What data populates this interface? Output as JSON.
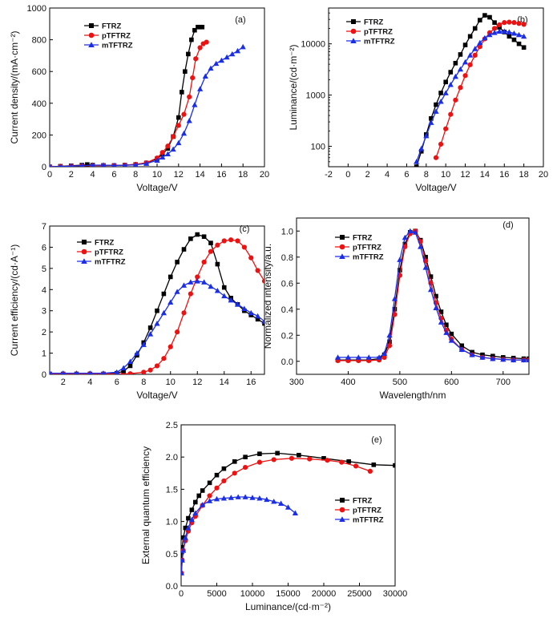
{
  "colors": {
    "FTRZ": "#000000",
    "pTFTRZ": "#ee1111",
    "mTFTRZ": "#1a2ee8"
  },
  "chart_data": [
    {
      "panel": "(a)",
      "type": "line",
      "scale": "linear",
      "xlabel": "Voltage/V",
      "ylabel": "Current density/(mA·cm⁻²)",
      "xlim": [
        0,
        20
      ],
      "ylim": [
        0,
        1000
      ],
      "xticks": [
        0,
        2,
        4,
        6,
        8,
        10,
        12,
        14,
        16,
        18,
        20
      ],
      "yticks": [
        0,
        200,
        400,
        600,
        800,
        1000
      ],
      "legend": "top-left",
      "series": [
        {
          "name": "FTRZ",
          "marker": "square",
          "x": [
            0,
            1,
            2,
            3,
            3.5,
            4,
            5,
            6,
            7,
            8,
            9,
            10,
            10.5,
            11,
            11.5,
            12,
            12.3,
            12.6,
            12.9,
            13.2,
            13.5,
            13.8,
            14,
            14.2
          ],
          "y": [
            0,
            3,
            6,
            10,
            14,
            10,
            8,
            8,
            10,
            14,
            24,
            50,
            78,
            115,
            190,
            310,
            470,
            600,
            710,
            800,
            860,
            880,
            880,
            880
          ]
        },
        {
          "name": "pTFTRZ",
          "marker": "circle",
          "x": [
            0,
            1,
            2,
            3,
            4,
            5,
            6,
            7,
            8,
            9,
            10,
            10.5,
            11,
            11.5,
            12,
            12.5,
            13,
            13.3,
            13.6,
            14,
            14.3,
            14.6
          ],
          "y": [
            0,
            2,
            4,
            6,
            7,
            7,
            8,
            10,
            15,
            25,
            55,
            90,
            130,
            190,
            260,
            330,
            440,
            560,
            680,
            750,
            775,
            785
          ]
        },
        {
          "name": "mTFTRZ",
          "marker": "triangle",
          "x": [
            0,
            1,
            2,
            3,
            4,
            5,
            6,
            7,
            8,
            9,
            10,
            10.5,
            11,
            11.5,
            12,
            12.5,
            13,
            13.5,
            14,
            14.5,
            15,
            15.5,
            16,
            16.5,
            17,
            17.5,
            18
          ],
          "y": [
            0,
            2,
            4,
            7,
            10,
            10,
            8,
            9,
            12,
            20,
            40,
            60,
            80,
            110,
            150,
            210,
            290,
            390,
            490,
            570,
            620,
            650,
            670,
            690,
            710,
            730,
            755
          ]
        }
      ]
    },
    {
      "panel": "(b)",
      "type": "line",
      "scale": "log-y",
      "xlabel": "Voltage/V",
      "ylabel": "Luminance/(cd·m⁻²)",
      "xlim": [
        -2,
        20
      ],
      "ylim": [
        40,
        50000
      ],
      "xticks": [
        -2,
        0,
        2,
        4,
        6,
        8,
        10,
        12,
        14,
        16,
        18,
        20
      ],
      "yticks": [
        100,
        1000,
        10000
      ],
      "legend": "top-left",
      "series": [
        {
          "name": "FTRZ",
          "marker": "square",
          "x": [
            7,
            7.5,
            8,
            8.5,
            9,
            9.5,
            10,
            10.5,
            11,
            11.5,
            12,
            12.5,
            13,
            13.5,
            14,
            14.5,
            15,
            15.5,
            16,
            16.5,
            17,
            17.5,
            18
          ],
          "y": [
            40,
            80,
            170,
            350,
            650,
            1100,
            1800,
            2800,
            4200,
            6200,
            9500,
            14000,
            20000,
            29000,
            36000,
            33000,
            26000,
            21000,
            17000,
            14000,
            12000,
            10000,
            8500
          ]
        },
        {
          "name": "pTFTRZ",
          "marker": "circle",
          "x": [
            9,
            9.5,
            10,
            10.5,
            11,
            11.5,
            12,
            12.5,
            13,
            13.5,
            14,
            14.5,
            15,
            15.5,
            16,
            16.5,
            17,
            17.5,
            18
          ],
          "y": [
            60,
            110,
            220,
            420,
            800,
            1400,
            2400,
            3900,
            6000,
            8800,
            12500,
            16500,
            20000,
            23500,
            26000,
            26500,
            26000,
            25000,
            24000
          ]
        },
        {
          "name": "mTFTRZ",
          "marker": "triangle",
          "x": [
            7,
            7.5,
            8,
            8.5,
            9,
            9.5,
            10,
            10.5,
            11,
            11.5,
            12,
            12.5,
            13,
            13.5,
            14,
            14.5,
            15,
            15.5,
            16,
            16.5,
            17,
            17.5,
            18
          ],
          "y": [
            50,
            90,
            160,
            290,
            480,
            750,
            1100,
            1600,
            2300,
            3200,
            4400,
            6000,
            8000,
            10500,
            13000,
            15000,
            16500,
            17500,
            17500,
            17000,
            16000,
            15000,
            14000
          ]
        }
      ]
    },
    {
      "panel": "(c)",
      "type": "line",
      "scale": "linear",
      "xlabel": "Voltage/V",
      "ylabel": "Current efficiency/(cd·A⁻¹)",
      "xlim": [
        1,
        17
      ],
      "ylim": [
        0,
        7
      ],
      "xticks": [
        2,
        4,
        6,
        8,
        10,
        12,
        14,
        16
      ],
      "yticks": [
        0,
        1,
        2,
        3,
        4,
        5,
        6,
        7
      ],
      "legend": "top-left",
      "series": [
        {
          "name": "FTRZ",
          "marker": "square",
          "x": [
            1,
            2,
            3,
            4,
            5,
            6,
            6.5,
            7,
            7.5,
            8,
            8.5,
            9,
            9.5,
            10,
            10.5,
            11,
            11.5,
            12,
            12.5,
            13,
            13.5,
            14,
            14.5,
            15,
            15.5,
            16,
            16.5,
            17
          ],
          "y": [
            0.02,
            0.02,
            0.02,
            0.02,
            0.02,
            0.05,
            0.15,
            0.4,
            0.9,
            1.5,
            2.2,
            3.0,
            3.8,
            4.6,
            5.3,
            5.9,
            6.4,
            6.6,
            6.5,
            6.2,
            5.2,
            4.1,
            3.6,
            3.3,
            3.0,
            2.8,
            2.6,
            2.4
          ]
        },
        {
          "name": "pTFTRZ",
          "marker": "circle",
          "x": [
            1,
            2,
            3,
            4,
            5,
            6,
            7,
            8,
            8.5,
            9,
            9.5,
            10,
            10.5,
            11,
            11.5,
            12,
            12.5,
            13,
            13.5,
            14,
            14.5,
            15,
            15.5,
            16,
            16.5,
            17
          ],
          "y": [
            0.02,
            0.02,
            0.02,
            0.02,
            0.02,
            0.02,
            0.03,
            0.1,
            0.2,
            0.4,
            0.75,
            1.3,
            2.0,
            2.9,
            3.8,
            4.6,
            5.3,
            5.8,
            6.1,
            6.3,
            6.35,
            6.3,
            6.0,
            5.5,
            4.9,
            4.4
          ]
        },
        {
          "name": "mTFTRZ",
          "marker": "triangle",
          "x": [
            1,
            2,
            3,
            4,
            5,
            6,
            6.5,
            7,
            7.5,
            8,
            8.5,
            9,
            9.5,
            10,
            10.5,
            11,
            11.5,
            12,
            12.5,
            13,
            13.5,
            14,
            14.5,
            15,
            15.5,
            16,
            16.5,
            17
          ],
          "y": [
            0.05,
            0.05,
            0.05,
            0.05,
            0.05,
            0.1,
            0.3,
            0.6,
            1.0,
            1.4,
            1.9,
            2.4,
            2.9,
            3.4,
            3.9,
            4.2,
            4.35,
            4.4,
            4.35,
            4.15,
            3.95,
            3.7,
            3.5,
            3.3,
            3.1,
            2.9,
            2.75,
            2.5
          ]
        }
      ]
    },
    {
      "panel": "(d)",
      "type": "line",
      "scale": "linear",
      "xlabel": "Wavelength/nm",
      "ylabel": "Normalized intensity/a.u.",
      "xlim": [
        300,
        750
      ],
      "ylim": [
        -0.1,
        1.1
      ],
      "xticks": [
        300,
        400,
        500,
        600,
        700
      ],
      "yticks": [
        0.0,
        0.2,
        0.4,
        0.6,
        0.8,
        1.0
      ],
      "legend": "top-left",
      "series": [
        {
          "name": "FTRZ",
          "marker": "square",
          "x": [
            380,
            400,
            420,
            440,
            460,
            470,
            480,
            490,
            500,
            510,
            520,
            530,
            540,
            550,
            560,
            570,
            580,
            590,
            600,
            620,
            640,
            660,
            680,
            700,
            720,
            740,
            750
          ],
          "y": [
            0.01,
            0.01,
            0.01,
            0.01,
            0.02,
            0.05,
            0.15,
            0.4,
            0.7,
            0.9,
            0.99,
            1.0,
            0.93,
            0.8,
            0.65,
            0.5,
            0.38,
            0.28,
            0.21,
            0.12,
            0.07,
            0.05,
            0.04,
            0.03,
            0.025,
            0.02,
            0.02
          ]
        },
        {
          "name": "pTFTRZ",
          "marker": "circle",
          "x": [
            380,
            400,
            420,
            440,
            460,
            470,
            480,
            490,
            500,
            510,
            520,
            530,
            540,
            550,
            560,
            570,
            580,
            590,
            600,
            620,
            640,
            660,
            680,
            700,
            720,
            740,
            750
          ],
          "y": [
            0.005,
            0.005,
            0.005,
            0.005,
            0.01,
            0.03,
            0.12,
            0.36,
            0.66,
            0.88,
            0.98,
            1.0,
            0.92,
            0.77,
            0.6,
            0.45,
            0.33,
            0.24,
            0.17,
            0.09,
            0.05,
            0.03,
            0.02,
            0.015,
            0.01,
            0.01,
            0.01
          ]
        },
        {
          "name": "mTFTRZ",
          "marker": "triangle",
          "x": [
            380,
            400,
            420,
            440,
            460,
            470,
            480,
            490,
            500,
            510,
            520,
            530,
            540,
            550,
            560,
            570,
            580,
            590,
            600,
            620,
            640,
            660,
            680,
            700,
            720,
            740,
            750
          ],
          "y": [
            0.03,
            0.03,
            0.03,
            0.03,
            0.03,
            0.06,
            0.2,
            0.48,
            0.78,
            0.95,
            1.0,
            0.99,
            0.88,
            0.72,
            0.55,
            0.41,
            0.3,
            0.22,
            0.16,
            0.09,
            0.05,
            0.03,
            0.02,
            0.015,
            0.01,
            0.01,
            0.01
          ]
        }
      ]
    },
    {
      "panel": "(e)",
      "type": "line",
      "scale": "linear",
      "xlabel": "Luminance/(cd·m⁻²)",
      "ylabel": "External quantum efficiency",
      "xlim": [
        0,
        30000
      ],
      "ylim": [
        0,
        2.5
      ],
      "xticks": [
        0,
        5000,
        10000,
        15000,
        20000,
        25000,
        30000
      ],
      "yticks": [
        0.0,
        0.5,
        1.0,
        1.5,
        2.0,
        2.5
      ],
      "legend": "right",
      "series": [
        {
          "name": "FTRZ",
          "marker": "square",
          "x": [
            50,
            150,
            300,
            600,
            1000,
            1500,
            2000,
            2500,
            3000,
            4000,
            5000,
            6000,
            7500,
            9000,
            11000,
            13500,
            16500,
            20000,
            23500,
            27000,
            30000
          ],
          "y": [
            0.4,
            0.6,
            0.75,
            0.9,
            1.05,
            1.18,
            1.3,
            1.4,
            1.48,
            1.6,
            1.72,
            1.82,
            1.93,
            2.0,
            2.05,
            2.06,
            2.03,
            1.98,
            1.93,
            1.88,
            1.87
          ]
        },
        {
          "name": "pTFTRZ",
          "marker": "circle",
          "x": [
            50,
            150,
            300,
            600,
            1000,
            1500,
            2000,
            3000,
            4000,
            5000,
            6000,
            7500,
            9000,
            11000,
            13000,
            15500,
            18000,
            20500,
            22500,
            24500,
            26500
          ],
          "y": [
            0.2,
            0.4,
            0.55,
            0.7,
            0.85,
            0.98,
            1.08,
            1.25,
            1.4,
            1.52,
            1.63,
            1.75,
            1.84,
            1.92,
            1.96,
            1.98,
            1.97,
            1.95,
            1.92,
            1.86,
            1.78
          ]
        },
        {
          "name": "mTFTRZ",
          "marker": "triangle",
          "x": [
            50,
            150,
            300,
            600,
            1000,
            1500,
            2000,
            3000,
            4000,
            5000,
            6000,
            7000,
            8000,
            9000,
            10000,
            11000,
            12000,
            13000,
            14000,
            15000,
            16000
          ],
          "y": [
            0.2,
            0.4,
            0.55,
            0.75,
            0.9,
            1.03,
            1.13,
            1.26,
            1.32,
            1.35,
            1.36,
            1.37,
            1.38,
            1.38,
            1.37,
            1.36,
            1.34,
            1.31,
            1.28,
            1.22,
            1.13
          ]
        }
      ]
    }
  ]
}
